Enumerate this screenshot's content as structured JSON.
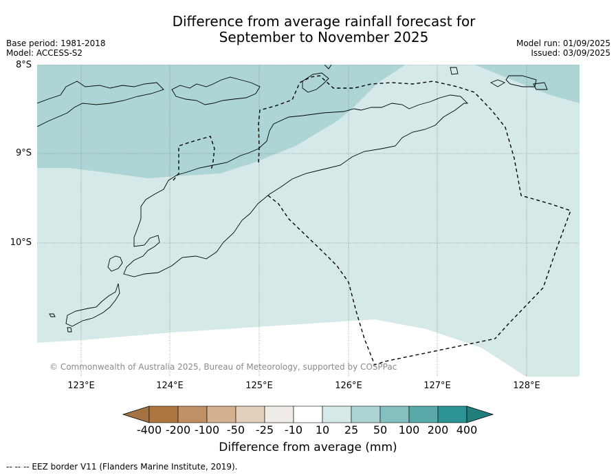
{
  "title": {
    "line1": "Difference from average rainfall forecast for",
    "line2": "September to November 2025"
  },
  "meta": {
    "base_period": "Base period: 1981-2018",
    "model": "Model: ACCESS-S2",
    "model_run": "Model run: 01/09/2025",
    "issued": "Issued: 03/09/2025"
  },
  "axes": {
    "lat_labels": [
      "8°S",
      "9°S",
      "10°S"
    ],
    "lon_labels": [
      "123°E",
      "124°E",
      "125°E",
      "126°E",
      "127°E",
      "128°E"
    ]
  },
  "credit": "© Commonwealth of Australia 2025, Bureau of Meteorology, supported by COSPPac",
  "legend": {
    "label": "Difference from average (mm)",
    "ticks": [
      "-400",
      "-200",
      "-100",
      "-50",
      "-25",
      "-10",
      "10",
      "25",
      "50",
      "100",
      "200",
      "400"
    ],
    "colors": [
      "#a57241",
      "#ad7640",
      "#c08f66",
      "#d3b090",
      "#e2cfbb",
      "#efebe6",
      "#ffffff",
      "#d5e9e8",
      "#add5d5",
      "#84c0bf",
      "#58a9a8",
      "#2c9593",
      "#227e7c"
    ]
  },
  "map_colors": {
    "region_25_50": "#add5d5",
    "region_10_25": "#d5e9e8",
    "region_neutral": "#ffffff"
  },
  "footer": "--  --  -- EEZ border V11 (Flanders Marine Institute, 2019)."
}
